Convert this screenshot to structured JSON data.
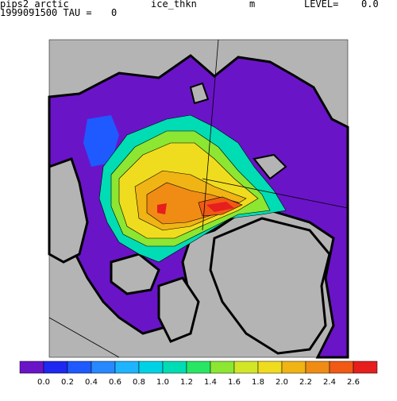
{
  "header": {
    "name": "pips2_arctic",
    "variable": "ice_thkn",
    "units": "m",
    "level_label": "LEVEL=",
    "level": "0.0",
    "time_label": "1999091500 TAU =",
    "tau": "0"
  },
  "colorbar": {
    "labels": [
      "0.0",
      "0.2",
      "0.4",
      "0.6",
      "0.8",
      "1.0",
      "1.2",
      "1.4",
      "1.6",
      "1.8",
      "2.0",
      "2.2",
      "2.4",
      "2.6"
    ],
    "colors": [
      "#6a14c8",
      "#1e28f0",
      "#1e5aff",
      "#2888ff",
      "#1eb4ff",
      "#00d2e6",
      "#00dcb4",
      "#28e664",
      "#8ce632",
      "#d2e628",
      "#f0dc1e",
      "#f0b414",
      "#f08c14",
      "#f05a14",
      "#e61e1e"
    ]
  }
}
